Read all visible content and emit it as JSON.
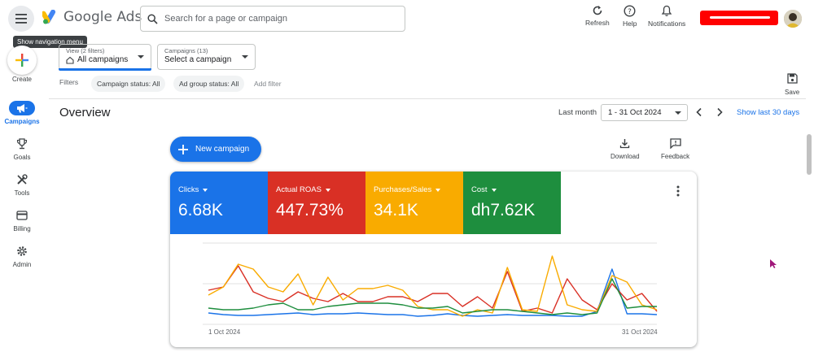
{
  "header": {
    "app_name": "Google Ads",
    "search_placeholder": "Search for a page or campaign",
    "tooltip": "Show navigation menu",
    "actions": [
      {
        "label": "Refresh",
        "icon": "refresh-icon"
      },
      {
        "label": "Help",
        "icon": "help-icon"
      },
      {
        "label": "Notifications",
        "icon": "bell-icon"
      }
    ]
  },
  "nav": {
    "create_label": "Create",
    "items": [
      {
        "label": "Campaigns",
        "icon": "megaphone-icon",
        "active": true
      },
      {
        "label": "Goals",
        "icon": "trophy-icon",
        "active": false
      },
      {
        "label": "Tools",
        "icon": "tools-icon",
        "active": false
      },
      {
        "label": "Billing",
        "icon": "credit-card-icon",
        "active": false
      },
      {
        "label": "Admin",
        "icon": "gear-icon",
        "active": false
      }
    ]
  },
  "selectors": {
    "view": {
      "small": "View (2 filters)",
      "main": "All campaigns"
    },
    "campaigns": {
      "small": "Campaigns (13)",
      "main": "Select a campaign"
    }
  },
  "filters": {
    "label": "Filters",
    "chips": [
      "Campaign status: All",
      "Ad group status: All"
    ],
    "add_label": "Add filter"
  },
  "save_label": "Save",
  "overview": {
    "title": "Overview",
    "date_label": "Last month",
    "date_range": "1 - 31 Oct 2024",
    "show_last": "Show last 30 days",
    "new_campaign": "New campaign",
    "download": "Download",
    "feedback": "Feedback"
  },
  "metrics": [
    {
      "name": "Clicks",
      "value": "6.68K",
      "color": "#1a73e8"
    },
    {
      "name": "Actual ROAS",
      "value": "447.73%",
      "color": "#d93025"
    },
    {
      "name": "Purchases/Sales",
      "value": "34.1K",
      "color": "#f9ab00"
    },
    {
      "name": "Cost",
      "value": "dh7.62K",
      "color": "#1e8e3e"
    }
  ],
  "chart_data": {
    "type": "line",
    "x_start": "1 Oct 2024",
    "x_end": "31 Oct 2024",
    "x": [
      1,
      2,
      3,
      4,
      5,
      6,
      7,
      8,
      9,
      10,
      11,
      12,
      13,
      14,
      15,
      16,
      17,
      18,
      19,
      20,
      21,
      22,
      23,
      24,
      25,
      26,
      27,
      28,
      29,
      30,
      31
    ],
    "series": [
      {
        "name": "Clicks",
        "color": "#1a73e8",
        "values": [
          14,
          12,
          11,
          11,
          12,
          13,
          14,
          12,
          13,
          13,
          14,
          13,
          12,
          12,
          10,
          11,
          13,
          11,
          10,
          11,
          12,
          11,
          11,
          11,
          10,
          10,
          16,
          68,
          13,
          13,
          12
        ]
      },
      {
        "name": "Actual ROAS",
        "color": "#d93025",
        "values": [
          42,
          46,
          72,
          40,
          32,
          28,
          40,
          32,
          28,
          38,
          28,
          28,
          34,
          34,
          28,
          38,
          38,
          22,
          34,
          20,
          65,
          16,
          20,
          14,
          56,
          30,
          18,
          50,
          30,
          38,
          16
        ]
      },
      {
        "name": "Purchases/Sales",
        "color": "#f9ab00",
        "values": [
          36,
          46,
          74,
          68,
          46,
          40,
          62,
          24,
          58,
          30,
          44,
          44,
          48,
          42,
          22,
          18,
          18,
          10,
          18,
          14,
          70,
          18,
          16,
          84,
          24,
          18,
          16,
          60,
          52,
          24,
          18
        ]
      },
      {
        "name": "Cost",
        "color": "#1e8e3e",
        "values": [
          20,
          18,
          18,
          20,
          24,
          26,
          18,
          18,
          22,
          24,
          26,
          26,
          26,
          24,
          20,
          20,
          22,
          14,
          16,
          18,
          18,
          16,
          14,
          12,
          14,
          12,
          14,
          56,
          20,
          22,
          22
        ]
      }
    ]
  }
}
